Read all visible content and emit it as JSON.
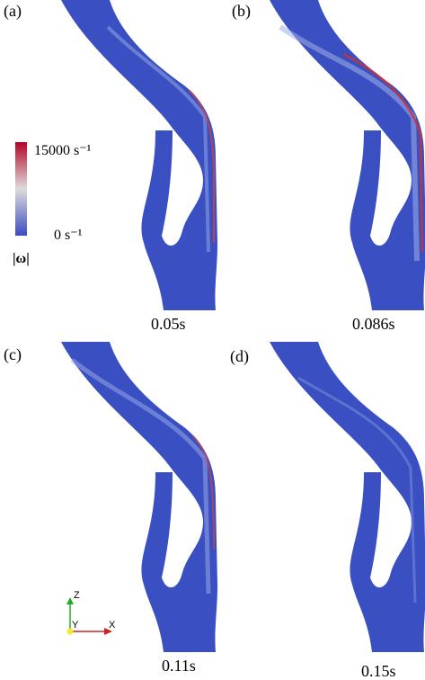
{
  "panels": [
    {
      "label": "(a)",
      "time": "0.05s"
    },
    {
      "label": "(b)",
      "time": "0.086s"
    },
    {
      "label": "(c)",
      "time": "0.11s"
    },
    {
      "label": "(d)",
      "time": "0.15s"
    }
  ],
  "colorbar": {
    "max_label": "15000 s⁻¹",
    "min_label": "0 s⁻¹",
    "quantity": "|ω|"
  },
  "axes_triad": {
    "z": "Z",
    "y": "Y",
    "x": "X"
  }
}
